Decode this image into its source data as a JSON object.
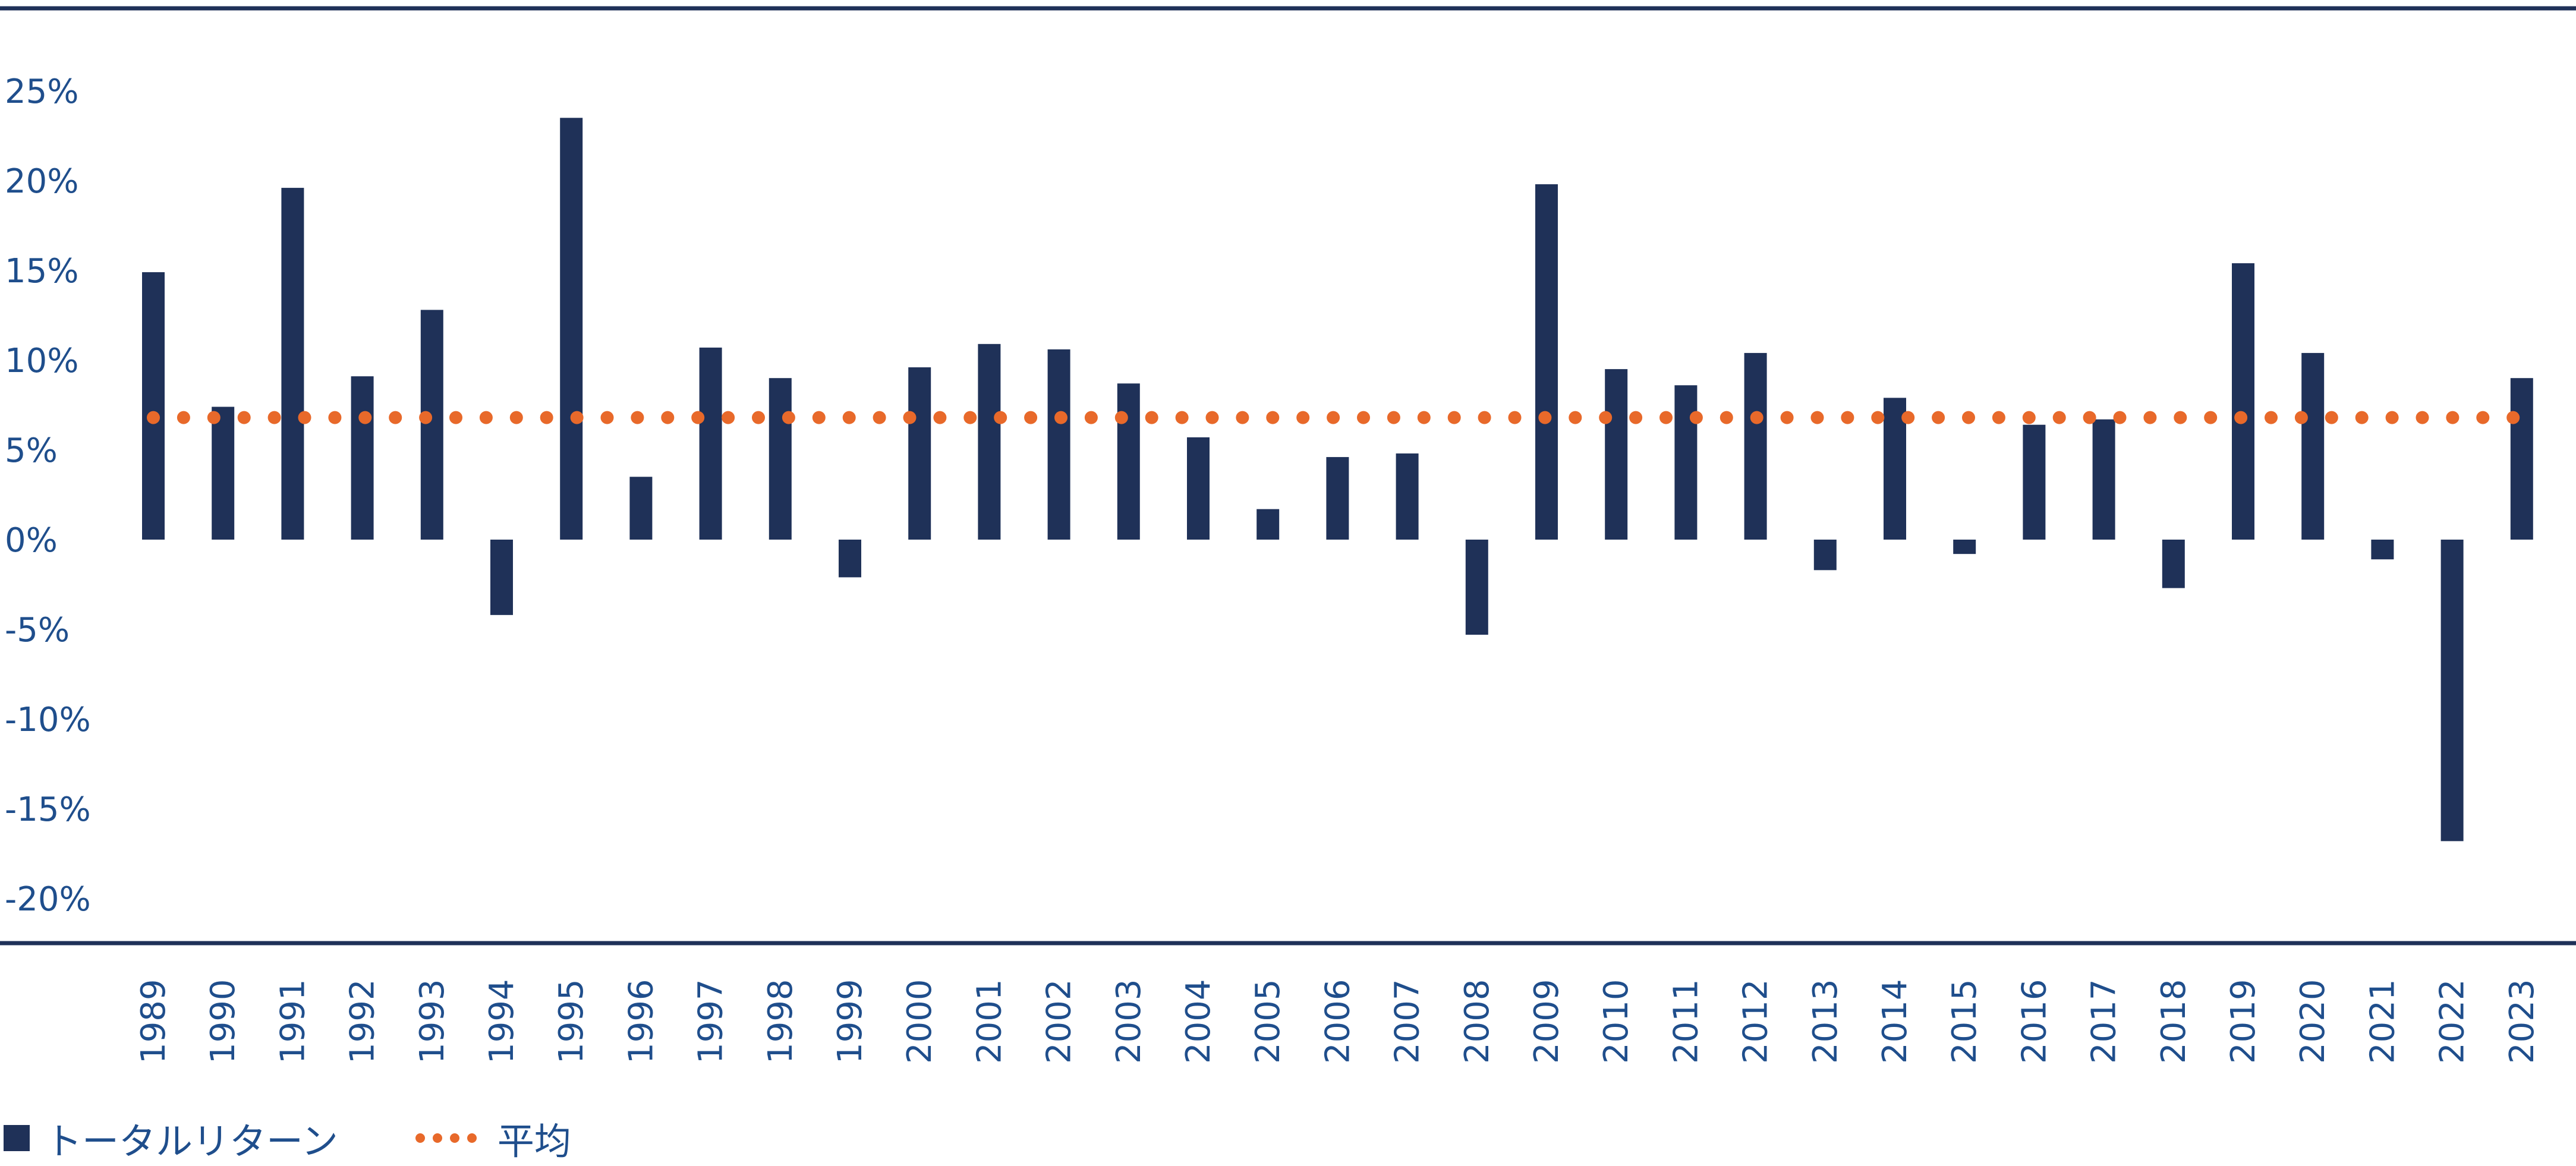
{
  "chart_data": {
    "type": "bar",
    "categories": [
      "1989",
      "1990",
      "1991",
      "1992",
      "1993",
      "1994",
      "1995",
      "1996",
      "1997",
      "1998",
      "1999",
      "2000",
      "2001",
      "2002",
      "2003",
      "2004",
      "2005",
      "2006",
      "2007",
      "2008",
      "2009",
      "2010",
      "2011",
      "2012",
      "2013",
      "2014",
      "2015",
      "2016",
      "2017",
      "2018",
      "2019",
      "2020",
      "2021",
      "2022",
      "2023"
    ],
    "series": [
      {
        "name": "トータルリターン",
        "type": "bar",
        "color": "#1f3158",
        "values": [
          14.9,
          7.4,
          19.6,
          9.1,
          12.8,
          -4.2,
          23.5,
          3.5,
          10.7,
          9.0,
          -2.1,
          9.6,
          10.9,
          10.6,
          8.7,
          5.7,
          1.7,
          4.6,
          4.8,
          -5.3,
          19.8,
          9.5,
          8.6,
          10.4,
          -1.7,
          7.9,
          -0.8,
          6.4,
          6.7,
          -2.7,
          15.4,
          10.4,
          -1.1,
          -16.8,
          9.0
        ]
      },
      {
        "name": "平均",
        "type": "dotted-line",
        "color": "#e8692a",
        "value": 6.8
      }
    ],
    "yticks": [
      "25%",
      "20%",
      "15%",
      "10%",
      "5%",
      "0%",
      "-5%",
      "-10%",
      "-15%",
      "-20%"
    ],
    "ylim": [
      -23,
      30
    ],
    "axis_color": "#1f3158",
    "tick_color": "#1f4e8c"
  },
  "legend": {
    "bar_label": "トータルリターン",
    "avg_label": "平均"
  }
}
